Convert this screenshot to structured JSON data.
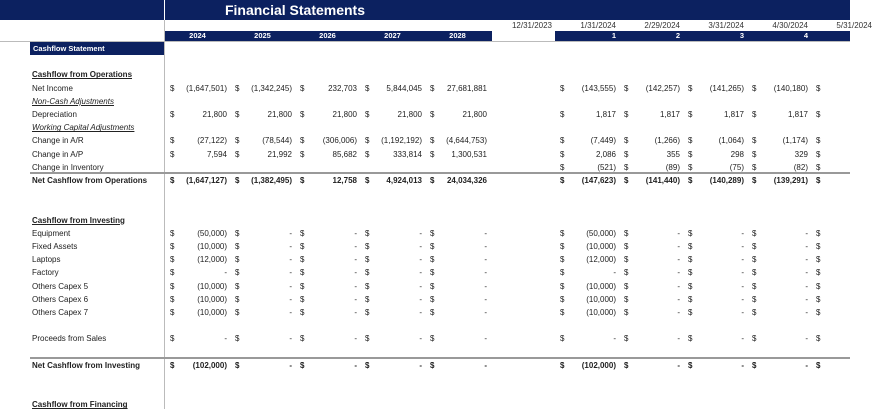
{
  "title": "Financial Statements",
  "section_header": "Cashflow Statement",
  "years": [
    "2024",
    "2025",
    "2026",
    "2027",
    "2028"
  ],
  "opening_date": "12/31/2023",
  "months": [
    {
      "date": "1/31/2024",
      "num": "1"
    },
    {
      "date": "2/29/2024",
      "num": "2"
    },
    {
      "date": "3/31/2024",
      "num": "3"
    },
    {
      "date": "4/30/2024",
      "num": "4"
    },
    {
      "date": "5/31/2024",
      "num": ""
    }
  ],
  "colors": {
    "header_navy": "#0c2160"
  },
  "rows": [
    {
      "slot": 2,
      "label": "Cashflow from Operations",
      "style": "heading"
    },
    {
      "slot": 3,
      "label": "Net Income",
      "annual": [
        "(1,647,501)",
        "(1,342,245)",
        "232,703",
        "5,844,045",
        "27,681,881"
      ],
      "monthly": [
        "(143,555)",
        "(142,257)",
        "(141,265)",
        "(140,180)",
        ""
      ]
    },
    {
      "slot": 4,
      "label": "Non-Cash Adjustments",
      "style": "italic"
    },
    {
      "slot": 5,
      "label": "Depreciation",
      "annual": [
        "21,800",
        "21,800",
        "21,800",
        "21,800",
        "21,800"
      ],
      "monthly": [
        "1,817",
        "1,817",
        "1,817",
        "1,817",
        ""
      ]
    },
    {
      "slot": 6,
      "label": "Working Capital Adjustments",
      "style": "italic"
    },
    {
      "slot": 7,
      "label": "Change in A/R",
      "annual": [
        "(27,122)",
        "(78,544)",
        "(306,006)",
        "(1,192,192)",
        "(4,644,753)"
      ],
      "monthly": [
        "(7,449)",
        "(1,266)",
        "(1,064)",
        "(1,174)",
        ""
      ]
    },
    {
      "slot": 8,
      "label": "Change in A/P",
      "annual": [
        "7,594",
        "21,992",
        "85,682",
        "333,814",
        "1,300,531"
      ],
      "monthly": [
        "2,086",
        "355",
        "298",
        "329",
        ""
      ]
    },
    {
      "slot": 9,
      "label": "Change in Inventory",
      "monthly": [
        "(521)",
        "(89)",
        "(75)",
        "(82)",
        ""
      ]
    },
    {
      "slot": 10,
      "label": "Net Cashflow from Operations",
      "style": "total",
      "annual": [
        "(1,647,127)",
        "(1,382,495)",
        "12,758",
        "4,924,013",
        "24,034,326"
      ],
      "monthly": [
        "(147,623)",
        "(141,440)",
        "(140,289)",
        "(139,291)",
        ""
      ]
    },
    {
      "slot": 13,
      "label": "Cashflow from Investing",
      "style": "heading"
    },
    {
      "slot": 14,
      "label": "Equipment",
      "annual": [
        "(50,000)",
        "-",
        "-",
        "-",
        "-"
      ],
      "monthly": [
        "(50,000)",
        "-",
        "-",
        "-",
        ""
      ]
    },
    {
      "slot": 15,
      "label": "Fixed Assets",
      "annual": [
        "(10,000)",
        "-",
        "-",
        "-",
        "-"
      ],
      "monthly": [
        "(10,000)",
        "-",
        "-",
        "-",
        ""
      ]
    },
    {
      "slot": 16,
      "label": "Laptops",
      "annual": [
        "(12,000)",
        "-",
        "-",
        "-",
        "-"
      ],
      "monthly": [
        "(12,000)",
        "-",
        "-",
        "-",
        ""
      ]
    },
    {
      "slot": 17,
      "label": "Factory",
      "annual": [
        "-",
        "-",
        "-",
        "-",
        "-"
      ],
      "monthly": [
        "-",
        "-",
        "-",
        "-",
        ""
      ]
    },
    {
      "slot": 18,
      "label": "Others Capex 5",
      "annual": [
        "(10,000)",
        "-",
        "-",
        "-",
        "-"
      ],
      "monthly": [
        "(10,000)",
        "-",
        "-",
        "-",
        ""
      ]
    },
    {
      "slot": 19,
      "label": "Others Capex 6",
      "annual": [
        "(10,000)",
        "-",
        "-",
        "-",
        "-"
      ],
      "monthly": [
        "(10,000)",
        "-",
        "-",
        "-",
        ""
      ]
    },
    {
      "slot": 20,
      "label": "Others Capex 7",
      "annual": [
        "(10,000)",
        "-",
        "-",
        "-",
        "-"
      ],
      "monthly": [
        "(10,000)",
        "-",
        "-",
        "-",
        ""
      ]
    },
    {
      "slot": 22,
      "label": "Proceeds from Sales",
      "annual": [
        "-",
        "-",
        "-",
        "-",
        "-"
      ],
      "monthly": [
        "-",
        "-",
        "-",
        "-",
        ""
      ]
    },
    {
      "slot": 24,
      "label": "Net Cashflow from Investing",
      "style": "total",
      "annual": [
        "(102,000)",
        "-",
        "-",
        "-",
        "-"
      ],
      "monthly": [
        "(102,000)",
        "-",
        "-",
        "-",
        ""
      ]
    },
    {
      "slot": 27,
      "label": "Cashflow from Financing",
      "style": "heading"
    }
  ]
}
